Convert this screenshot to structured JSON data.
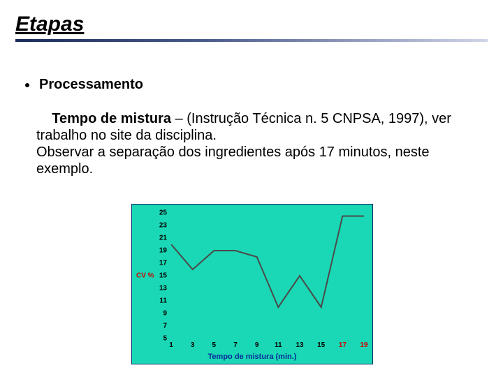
{
  "title": "Etapas",
  "title_color": "#000000",
  "title_fontsize": 30,
  "rule_gradient_start": "#1a2a5c",
  "rule_gradient_end": "#d0d4e8",
  "bullet": {
    "label": "Processamento",
    "fontsize": 20
  },
  "body": {
    "bold_lead": "Tempo de mistura",
    "rest1": " – (Instrução Técnica n. 5 CNPSA, 1997), ver trabalho no site da disciplina.",
    "line2": " Observar a separação dos ingredientes após 17 minutos, neste exemplo.",
    "fontsize": 20
  },
  "chart": {
    "type": "line",
    "background_color": "#1ad8b5",
    "border_color": "#0a2a6a",
    "line_color": "#4a4a4a",
    "line_width": 2,
    "ylabel": "CV %",
    "ylabel_color": "#cc0000",
    "xlabel": "Tempo de mistura (min.)",
    "xlabel_color": "#0a2a9a",
    "ylim": [
      5,
      25
    ],
    "xlim": [
      1,
      19
    ],
    "yticks": [
      5,
      7,
      9,
      11,
      13,
      15,
      17,
      19,
      21,
      23,
      25
    ],
    "xticks": [
      1,
      3,
      5,
      7,
      9,
      11,
      13,
      15,
      17,
      19
    ],
    "xtick_split_index": 8,
    "xtick_color_before": "#000000",
    "xtick_color_after": "#cc0000",
    "tick_fontsize": 10,
    "x": [
      1,
      3,
      5,
      7,
      9,
      11,
      13,
      15,
      17,
      19
    ],
    "y": [
      20,
      16,
      19,
      19,
      18,
      10,
      15,
      10,
      24.5,
      24.5
    ]
  }
}
